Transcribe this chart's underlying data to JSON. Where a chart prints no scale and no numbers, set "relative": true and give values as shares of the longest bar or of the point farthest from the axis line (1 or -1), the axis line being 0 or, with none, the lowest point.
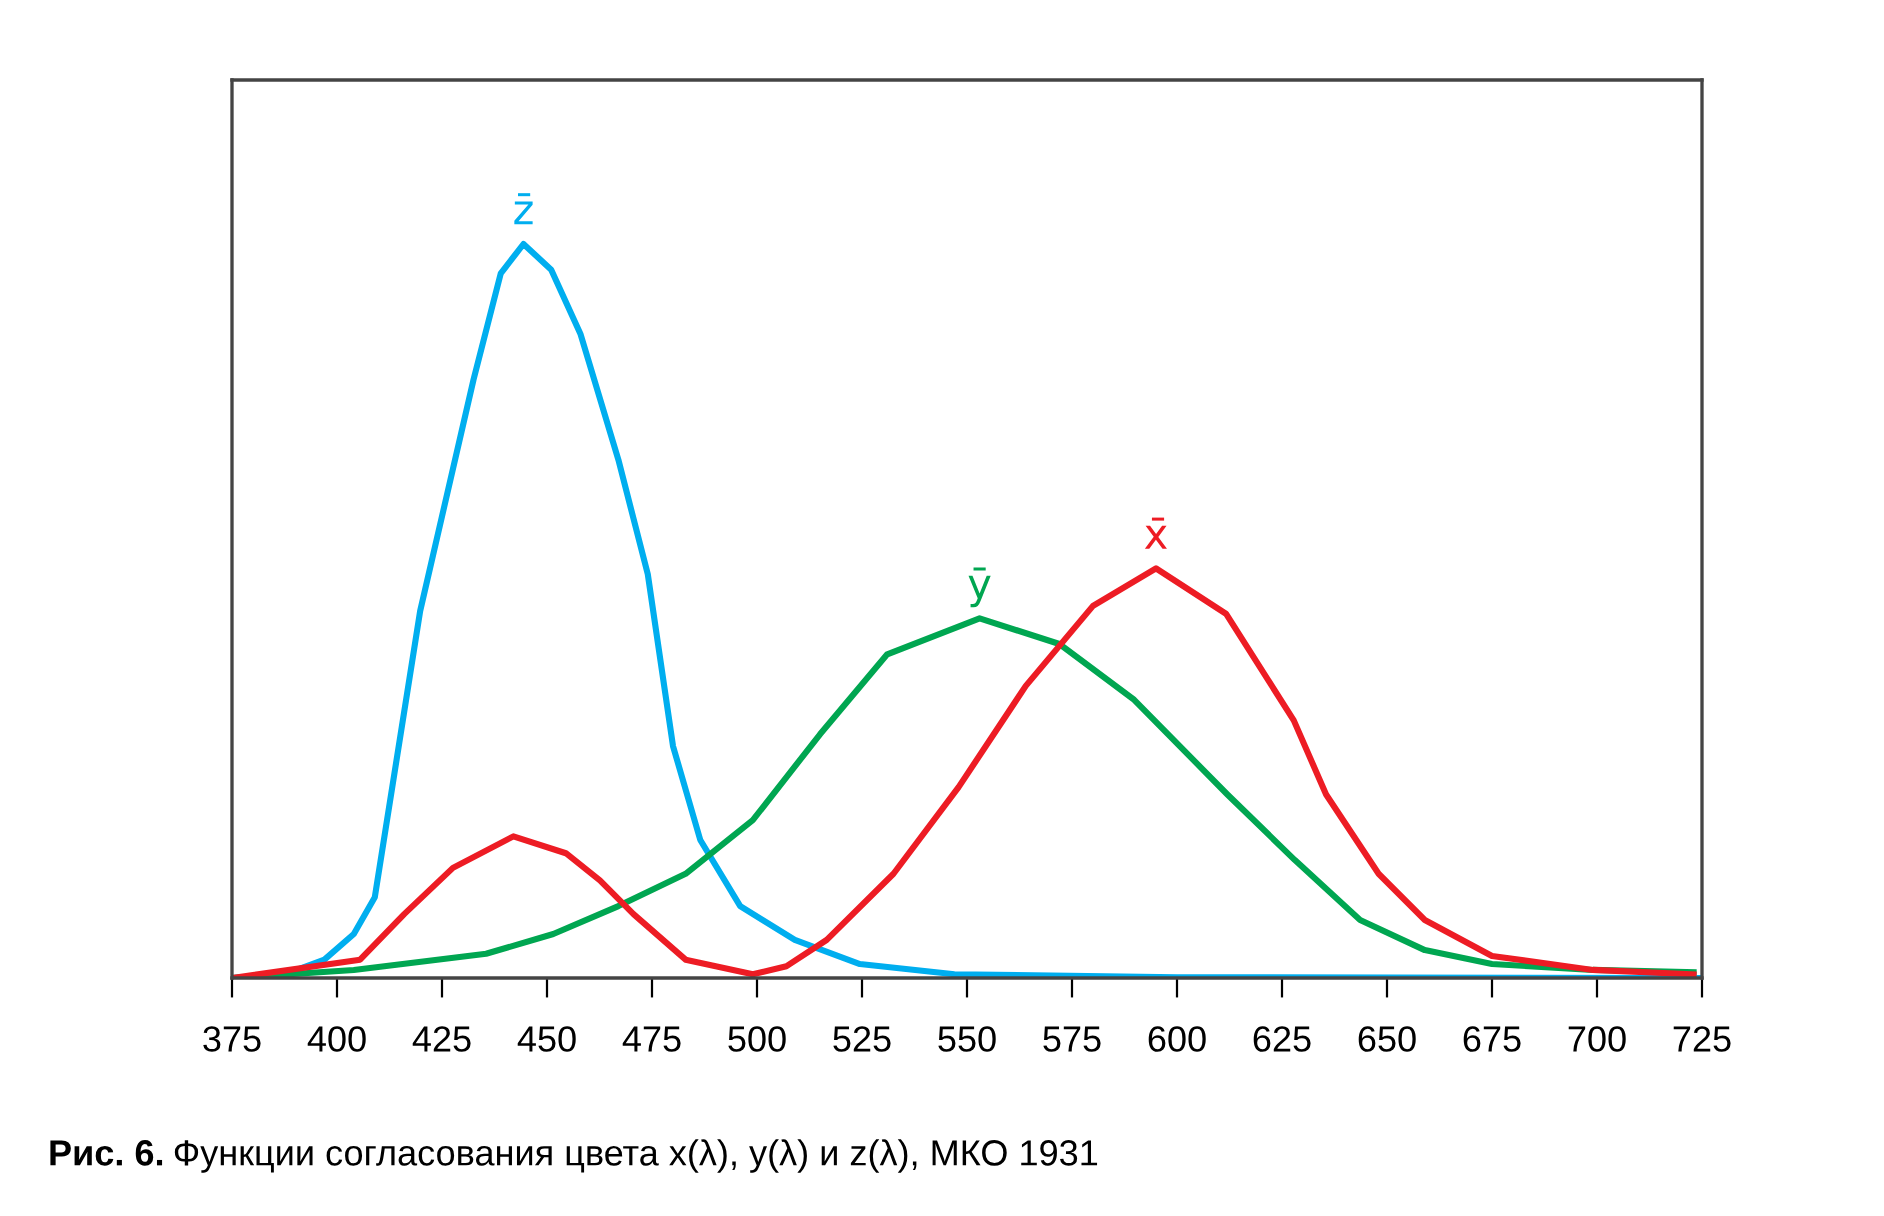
{
  "chart_data": {
    "type": "line",
    "relative": true,
    "xlim": [
      375,
      725
    ],
    "xticks": [
      375,
      400,
      425,
      450,
      475,
      500,
      525,
      550,
      575,
      600,
      625,
      650,
      675,
      700,
      725
    ],
    "grid": false,
    "legend": false,
    "marker": "none",
    "line_style": "solid",
    "annotations": [
      "Рис. 6.",
      "Функции согласования цвета x(λ), y(λ) и z(λ), МКО 1931"
    ],
    "series": [
      {
        "name": "z̄",
        "color": "#00aeef",
        "x": [
          375,
          387.5,
          397,
          404,
          409,
          419.8,
          432.5,
          439,
          444.4,
          451,
          458,
          467,
          474,
          480,
          486.5,
          496,
          509,
          524.5,
          547,
          600,
          725
        ],
        "values": [
          0,
          0.005,
          0.025,
          0.06,
          0.11,
          0.5,
          0.815,
          0.96,
          1,
          0.965,
          0.877,
          0.706,
          0.55,
          0.316,
          0.188,
          0.098,
          0.052,
          0.019,
          0.005,
          0.001,
          0
        ]
      },
      {
        "name": "ȳ",
        "color": "#00a651",
        "x": [
          375,
          404,
          435.5,
          451.5,
          467,
          483,
          499,
          515,
          531,
          553,
          572,
          589.8,
          612,
          628,
          643.6,
          659,
          675,
          699,
          723
        ],
        "values": [
          0,
          0.011,
          0.033,
          0.06,
          0.098,
          0.142,
          0.215,
          0.332,
          0.441,
          0.49,
          0.455,
          0.379,
          0.25,
          0.161,
          0.079,
          0.038,
          0.019,
          0.011,
          0.008
        ]
      },
      {
        "name": "x̄",
        "color": "#ed1c24",
        "x": [
          375,
          405.5,
          416,
          427.6,
          442,
          454.5,
          462.6,
          470.6,
          483,
          499,
          507,
          516.6,
          532.5,
          548,
          564,
          580,
          595,
          611.7,
          627.8,
          635.5,
          648,
          659,
          675,
          699,
          723
        ],
        "values": [
          0,
          0.025,
          0.087,
          0.15,
          0.193,
          0.17,
          0.133,
          0.087,
          0.025,
          0.005,
          0.016,
          0.052,
          0.142,
          0.26,
          0.398,
          0.507,
          0.558,
          0.496,
          0.351,
          0.25,
          0.142,
          0.079,
          0.03,
          0.011,
          0.005
        ]
      }
    ]
  }
}
